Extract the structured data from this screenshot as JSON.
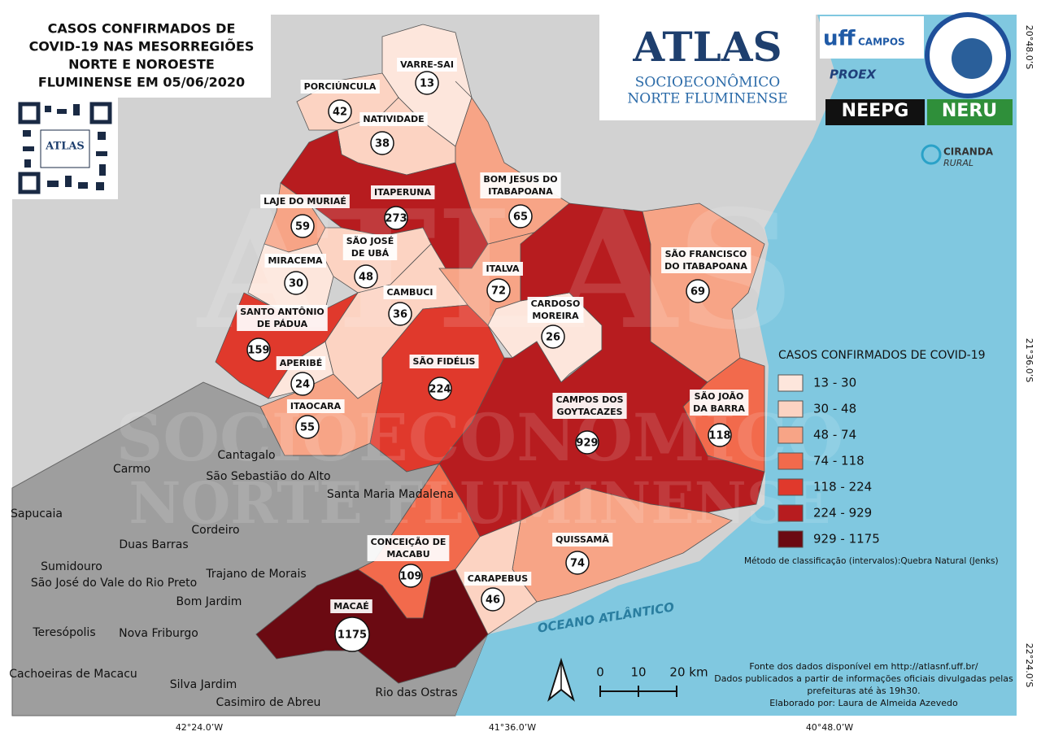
{
  "title_lines": [
    "CASOS CONFIRMADOS DE",
    "COVID-19 NAS MESORREGIÕES",
    "NORTE E NOROESTE",
    "FLUMINENSE EM 05/06/2020"
  ],
  "qr_label": "ATLAS",
  "atlas_logo": {
    "title": "ATLAS",
    "line1": "SOCIOECONÔMICO",
    "line2": "NORTE FLUMINENSE"
  },
  "partner_logos": {
    "uff": "uff",
    "campos": "CAMPOS",
    "proex": "PROEX",
    "neepg": "NEEPG",
    "neru": "NERU",
    "ciranda": "CIRANDA",
    "rural": "RURAL"
  },
  "municipalities": [
    {
      "name": [
        "VARRE-SAI"
      ],
      "cases": 13,
      "color": "#fde6dc"
    },
    {
      "name": [
        "PORCIÚNCULA"
      ],
      "cases": 42,
      "color": "#fcd3c2"
    },
    {
      "name": [
        "NATIVIDADE"
      ],
      "cases": 38,
      "color": "#fcd3c2"
    },
    {
      "name": [
        "ITAPERUNA"
      ],
      "cases": 273,
      "color": "#b71c1f"
    },
    {
      "name": [
        "LAJE DO MURIAÉ"
      ],
      "cases": 59,
      "color": "#f7a486"
    },
    {
      "name": [
        "SÃO JOSÉ",
        "DE UBÁ"
      ],
      "cases": 48,
      "color": "#fcd3c2"
    },
    {
      "name": [
        "MIRACEMA"
      ],
      "cases": 30,
      "color": "#fde6dc"
    },
    {
      "name": [
        "SANTO ANTÔNIO",
        "DE PÁDUA"
      ],
      "cases": 159,
      "color": "#e0392c"
    },
    {
      "name": [
        "APERIBÉ"
      ],
      "cases": 24,
      "color": "#fde6dc"
    },
    {
      "name": [
        "ITAOCARA"
      ],
      "cases": 55,
      "color": "#f7a486"
    },
    {
      "name": [
        "CAMBUCI"
      ],
      "cases": 36,
      "color": "#fcd3c2"
    },
    {
      "name": [
        "SÃO FIDÉLIS"
      ],
      "cases": 224,
      "color": "#e0392c"
    },
    {
      "name": [
        "ITALVA"
      ],
      "cases": 72,
      "color": "#f7a486"
    },
    {
      "name": [
        "BOM JESUS DO",
        "ITABAPOANA"
      ],
      "cases": 65,
      "color": "#f7a486"
    },
    {
      "name": [
        "CARDOSO",
        "MOREIRA"
      ],
      "cases": 26,
      "color": "#fde6dc"
    },
    {
      "name": [
        "CAMPOS DOS",
        "GOYTACAZES"
      ],
      "cases": 929,
      "color": "#b71c1f"
    },
    {
      "name": [
        "SÃO FRANCISCO",
        "DO ITABAPOANA"
      ],
      "cases": 69,
      "color": "#f7a486"
    },
    {
      "name": [
        "SÃO JOÃO",
        "DA BARRA"
      ],
      "cases": 118,
      "color": "#f26a4c"
    },
    {
      "name": [
        "CONCEIÇÃO DE",
        "MACABU"
      ],
      "cases": 109,
      "color": "#f26a4c"
    },
    {
      "name": [
        "QUISSAMÃ"
      ],
      "cases": 74,
      "color": "#f7a486"
    },
    {
      "name": [
        "CARAPEBUS"
      ],
      "cases": 46,
      "color": "#fcd3c2"
    },
    {
      "name": [
        "MACAÉ"
      ],
      "cases": 1175,
      "color": "#6b0a12"
    }
  ],
  "neighbors": [
    "Cantagalo",
    "Carmo",
    "São Sebastião do Alto",
    "Santa Maria Madalena",
    "Sapucaia",
    "Cordeiro",
    "Duas Barras",
    "Sumidouro",
    "Trajano de Morais",
    "São José do Vale do Rio Preto",
    "Bom Jardim",
    "Teresópolis",
    "Nova Friburgo",
    "Cachoeiras de Macacu",
    "Silva Jardim",
    "Casimiro de Abreu",
    "Rio das Ostras"
  ],
  "ocean_label": "OCEANO ATLÂNTICO",
  "legend": {
    "title": "CASOS CONFIRMADOS DE COVID-19",
    "classes": [
      {
        "label": "13 - 30",
        "color": "#fde6dc"
      },
      {
        "label": "30 - 48",
        "color": "#fcd3c2"
      },
      {
        "label": "48 - 74",
        "color": "#f7a486"
      },
      {
        "label": "74 - 118",
        "color": "#f26a4c"
      },
      {
        "label": "118 - 224",
        "color": "#e0392c"
      },
      {
        "label": "224 - 929",
        "color": "#b71c1f"
      },
      {
        "label": "929 - 1175",
        "color": "#6b0a12"
      }
    ],
    "method": "Método de classificação (intervalos):Quebra Natural (Jenks)"
  },
  "scale_labels": [
    "0",
    "10",
    "20 km"
  ],
  "source_lines": [
    "Fonte dos dados disponível em http://atlasnf.uff.br/",
    "Dados publicados a partir de informações oficiais divulgadas pelas",
    "prefeituras até às 19h30.",
    "Elaborado por: Laura de Almeida Azevedo"
  ],
  "lat_labels": [
    "20°48.0’S",
    "21°36.0’S",
    "22°24.0’S"
  ],
  "lon_labels": [
    "42°24.0’W",
    "41°36.0’W",
    "40°48.0’W"
  ]
}
